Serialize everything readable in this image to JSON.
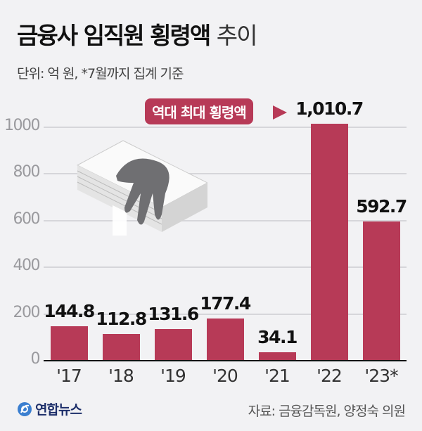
{
  "header": {
    "title_bold": "금융사 임직원 횡령액",
    "title_light": "추이",
    "subtitle": "단위: 억 원, *7월까지 집계 기준"
  },
  "callout": {
    "text": "역대 최대 횡령액"
  },
  "footer": {
    "logo": "연합뉴스",
    "source": "자료: 금융감독원, 양정숙 의원"
  },
  "colors": {
    "bar": "#b73a57",
    "background": "#f2f2f4",
    "grid": "#d6d6da"
  },
  "y_ticks": [
    "1000",
    "800",
    "600",
    "400",
    "200",
    "0"
  ],
  "bars": [
    {
      "x": "'17",
      "value": 144.8,
      "label": "144.8"
    },
    {
      "x": "'18",
      "value": 112.8,
      "label": "112.8"
    },
    {
      "x": "'19",
      "value": 131.6,
      "label": "131.6"
    },
    {
      "x": "'20",
      "value": 177.4,
      "label": "177.4"
    },
    {
      "x": "'21",
      "value": 34.1,
      "label": "34.1"
    },
    {
      "x": "'22",
      "value": 1010.7,
      "label": "1,010.7"
    },
    {
      "x": "'23*",
      "value": 592.7,
      "label": "592.7"
    }
  ],
  "chart_data": {
    "type": "bar",
    "title": "금융사 임직원 횡령액 추이",
    "subtitle": "단위: 억 원, *7월까지 집계 기준",
    "categories": [
      "'17",
      "'18",
      "'19",
      "'20",
      "'21",
      "'22",
      "'23*"
    ],
    "values": [
      144.8,
      112.8,
      131.6,
      177.4,
      34.1,
      1010.7,
      592.7
    ],
    "value_labels": [
      "144.8",
      "112.8",
      "131.6",
      "177.4",
      "34.1",
      "1,010.7",
      "592.7"
    ],
    "xlabel": "",
    "ylabel": "억 원",
    "ylim": [
      0,
      1000
    ],
    "yticks": [
      0,
      200,
      400,
      600,
      800,
      1000
    ],
    "grid": true,
    "annotations": [
      {
        "target": "'22",
        "text": "역대 최대 횡령액"
      }
    ],
    "source": "자료: 금융감독원, 양정숙 의원",
    "footnote": "*7월까지 집계 기준"
  }
}
